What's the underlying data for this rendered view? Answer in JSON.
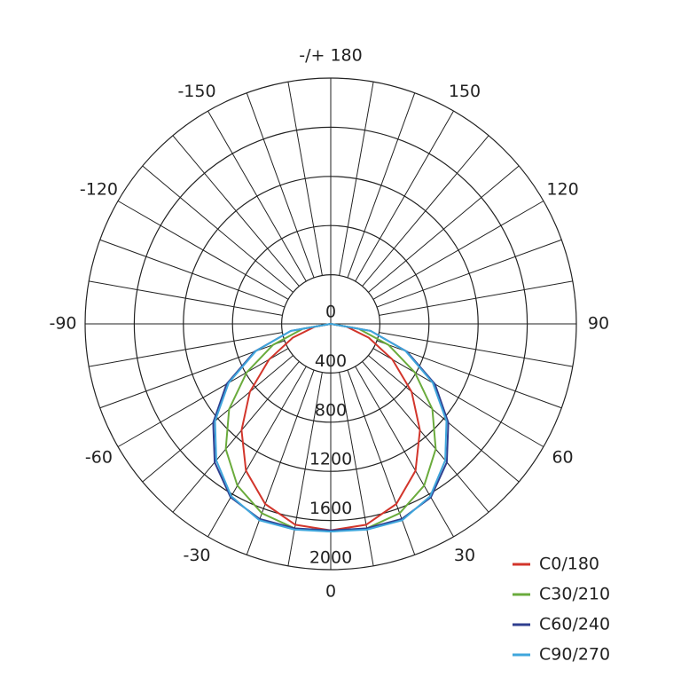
{
  "chart_data": {
    "type": "polar",
    "rlim": [
      0,
      2000
    ],
    "rticks": [
      0,
      400,
      800,
      1200,
      1600,
      2000
    ],
    "angle_ticks": [
      {
        "value": 180,
        "label": "-/+ 180"
      },
      150,
      120,
      90,
      60,
      30,
      0,
      -30,
      -60,
      -90,
      -120,
      -150
    ],
    "theta": [
      -90,
      -80,
      -70,
      -60,
      -50,
      -40,
      -30,
      -20,
      -10,
      0,
      10,
      20,
      30,
      40,
      50,
      60,
      70,
      80,
      90
    ],
    "series": [
      {
        "name": "C0/180",
        "color": "#d2352b",
        "values": [
          0,
          130,
          330,
          580,
          860,
          1130,
          1380,
          1560,
          1660,
          1680,
          1660,
          1560,
          1380,
          1130,
          860,
          580,
          330,
          130,
          0
        ]
      },
      {
        "name": "C30/210",
        "color": "#6aab3c",
        "values": [
          0,
          230,
          500,
          790,
          1080,
          1330,
          1520,
          1640,
          1690,
          1690,
          1690,
          1640,
          1520,
          1330,
          1080,
          790,
          500,
          230,
          0
        ]
      },
      {
        "name": "C60/240",
        "color": "#2f3f8f",
        "values": [
          0,
          330,
          660,
          980,
          1250,
          1470,
          1630,
          1690,
          1690,
          1680,
          1690,
          1690,
          1630,
          1470,
          1250,
          980,
          660,
          330,
          0
        ]
      },
      {
        "name": "C90/270",
        "color": "#3fa6dc",
        "values": [
          0,
          330,
          650,
          960,
          1230,
          1450,
          1620,
          1700,
          1700,
          1690,
          1700,
          1700,
          1620,
          1450,
          1230,
          960,
          650,
          330,
          0
        ]
      }
    ]
  }
}
